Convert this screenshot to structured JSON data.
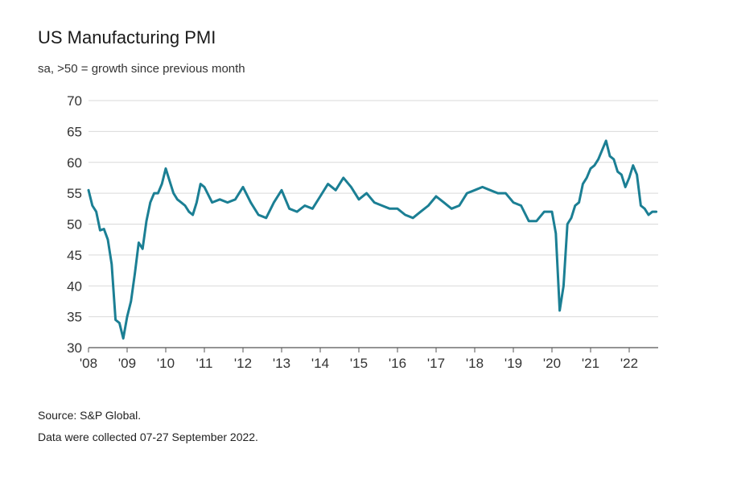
{
  "chart_data": {
    "type": "line",
    "title": "US Manufacturing PMI",
    "subtitle": "sa, >50 = growth since previous month",
    "xlabel": "",
    "ylabel": "",
    "ylim": [
      30,
      70
    ],
    "yticks": [
      30,
      35,
      40,
      45,
      50,
      55,
      60,
      65,
      70
    ],
    "xlim": [
      2008.0,
      2022.75
    ],
    "xticks": [
      {
        "label": "'08",
        "value": 2008
      },
      {
        "label": "'09",
        "value": 2009
      },
      {
        "label": "'10",
        "value": 2010
      },
      {
        "label": "'11",
        "value": 2011
      },
      {
        "label": "'12",
        "value": 2012
      },
      {
        "label": "'13",
        "value": 2013
      },
      {
        "label": "'14",
        "value": 2014
      },
      {
        "label": "'15",
        "value": 2015
      },
      {
        "label": "'16",
        "value": 2016
      },
      {
        "label": "'17",
        "value": 2017
      },
      {
        "label": "'18",
        "value": 2018
      },
      {
        "label": "'19",
        "value": 2019
      },
      {
        "label": "'20",
        "value": 2020
      },
      {
        "label": "'21",
        "value": 2021
      },
      {
        "label": "'22",
        "value": 2022
      }
    ],
    "grid": true,
    "line_color": "#1b7f94",
    "series": [
      {
        "name": "US Manufacturing PMI",
        "x": [
          2008.0,
          2008.1,
          2008.2,
          2008.3,
          2008.4,
          2008.5,
          2008.6,
          2008.7,
          2008.8,
          2008.9,
          2009.0,
          2009.1,
          2009.2,
          2009.3,
          2009.4,
          2009.5,
          2009.6,
          2009.7,
          2009.8,
          2009.9,
          2010.0,
          2010.1,
          2010.2,
          2010.3,
          2010.4,
          2010.5,
          2010.6,
          2010.7,
          2010.8,
          2010.9,
          2011.0,
          2011.2,
          2011.4,
          2011.6,
          2011.8,
          2012.0,
          2012.2,
          2012.4,
          2012.6,
          2012.8,
          2013.0,
          2013.2,
          2013.4,
          2013.6,
          2013.8,
          2014.0,
          2014.2,
          2014.4,
          2014.6,
          2014.8,
          2015.0,
          2015.2,
          2015.4,
          2015.6,
          2015.8,
          2016.0,
          2016.2,
          2016.4,
          2016.6,
          2016.8,
          2017.0,
          2017.2,
          2017.4,
          2017.6,
          2017.8,
          2018.0,
          2018.2,
          2018.4,
          2018.6,
          2018.8,
          2019.0,
          2019.2,
          2019.4,
          2019.6,
          2019.8,
          2020.0,
          2020.1,
          2020.2,
          2020.3,
          2020.4,
          2020.5,
          2020.6,
          2020.7,
          2020.8,
          2020.9,
          2021.0,
          2021.1,
          2021.2,
          2021.3,
          2021.4,
          2021.5,
          2021.6,
          2021.7,
          2021.8,
          2021.9,
          2022.0,
          2022.1,
          2022.2,
          2022.3,
          2022.4,
          2022.5,
          2022.6,
          2022.7
        ],
        "values": [
          55.5,
          53.0,
          52.0,
          49.0,
          49.2,
          47.5,
          43.5,
          34.5,
          34.0,
          31.5,
          35.0,
          37.5,
          42.0,
          47.0,
          46.0,
          50.5,
          53.5,
          55.0,
          55.0,
          56.5,
          59.0,
          57.0,
          55.0,
          54.0,
          53.5,
          53.0,
          52.0,
          51.5,
          53.5,
          56.5,
          56.0,
          53.5,
          54.0,
          53.5,
          54.0,
          56.0,
          53.5,
          51.5,
          51.0,
          53.5,
          55.5,
          52.5,
          52.0,
          53.0,
          52.5,
          54.5,
          56.5,
          55.5,
          57.5,
          56.0,
          54.0,
          55.0,
          53.5,
          53.0,
          52.5,
          52.5,
          51.5,
          51.0,
          52.0,
          53.0,
          54.5,
          53.5,
          52.5,
          53.0,
          55.0,
          55.5,
          56.0,
          55.5,
          55.0,
          55.0,
          53.5,
          53.0,
          50.5,
          50.5,
          52.0,
          52.0,
          48.5,
          36.0,
          40.0,
          50.0,
          51.0,
          53.0,
          53.5,
          56.5,
          57.5,
          59.0,
          59.5,
          60.5,
          62.0,
          63.5,
          61.0,
          60.5,
          58.5,
          58.0,
          56.0,
          57.5,
          59.5,
          58.0,
          53.0,
          52.5,
          51.5,
          52.0,
          52.0
        ]
      }
    ]
  },
  "footer": {
    "source": "Source: S&P Global.",
    "note": "Data were collected 07-27 September 2022."
  }
}
